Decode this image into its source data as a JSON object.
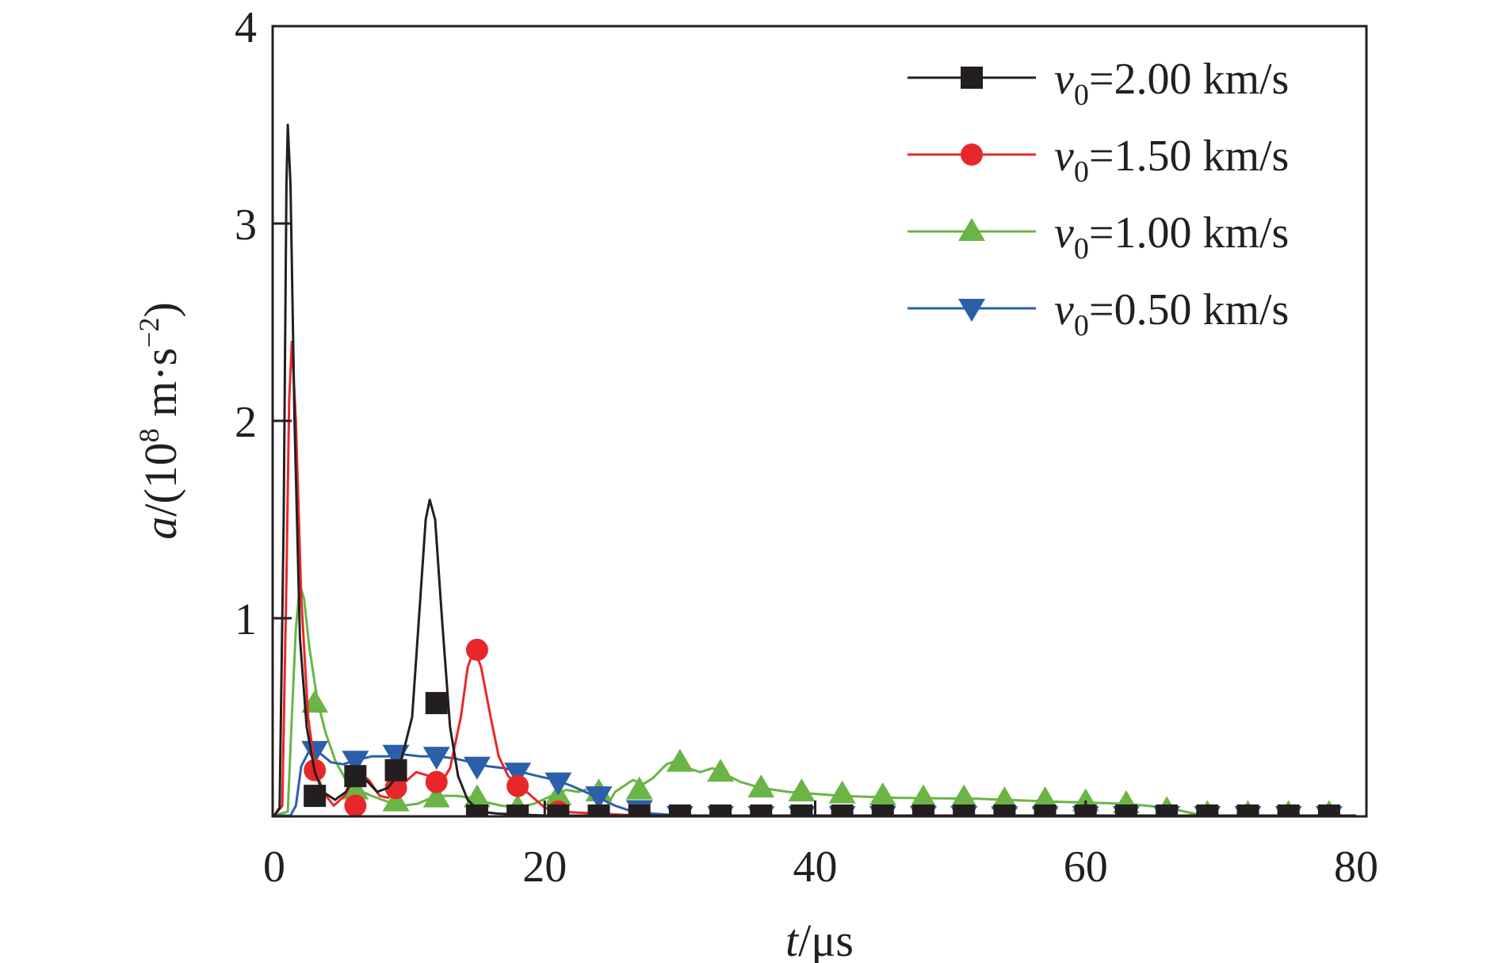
{
  "chart_data": {
    "type": "line",
    "xlabel": {
      "var": "t",
      "unit": "/μs"
    },
    "ylabel": {
      "var": "a",
      "unit": "/(10",
      "exp": "8",
      "unit2": " m·s",
      "exp2": "−2",
      "close": ")"
    },
    "xlim": [
      0,
      80
    ],
    "ylim": [
      0,
      4
    ],
    "x_ticks": [
      0,
      20,
      40,
      60,
      80
    ],
    "y_ticks": [
      1,
      2,
      3,
      4
    ],
    "x_tick_labels": [
      "0",
      "20",
      "40",
      "60",
      "80"
    ],
    "y_tick_labels": [
      "1",
      "2",
      "3",
      "4"
    ],
    "grid": false,
    "legend_position": "top-right",
    "series": [
      {
        "name": "v0=2.00 km/s",
        "legend": {
          "var": "v",
          "sub": "0",
          "text": "=2.00 km/s"
        },
        "color": "#231f20",
        "marker": "square",
        "line": [
          [
            0,
            0
          ],
          [
            0.4,
            0.04
          ],
          [
            0.7,
            1.5
          ],
          [
            0.9,
            3.2
          ],
          [
            1.0,
            3.5
          ],
          [
            1.2,
            3.2
          ],
          [
            1.5,
            2.0
          ],
          [
            1.9,
            0.9
          ],
          [
            2.4,
            0.45
          ],
          [
            3,
            0.22
          ],
          [
            3.6,
            0.12
          ],
          [
            4.5,
            0.08
          ],
          [
            5.3,
            0.12
          ],
          [
            6.1,
            0.22
          ],
          [
            6.8,
            0.18
          ],
          [
            7.6,
            0.12
          ],
          [
            8.4,
            0.14
          ],
          [
            9.1,
            0.2
          ],
          [
            10.2,
            0.5
          ],
          [
            10.8,
            1.1
          ],
          [
            11.2,
            1.5
          ],
          [
            11.5,
            1.6
          ],
          [
            11.9,
            1.5
          ],
          [
            12.4,
            1.0
          ],
          [
            13,
            0.45
          ],
          [
            13.6,
            0.2
          ],
          [
            14.3,
            0.08
          ],
          [
            15.2,
            0.02
          ],
          [
            16.5,
            0.01
          ],
          [
            20,
            0
          ],
          [
            80,
            0
          ]
        ],
        "markers": [
          [
            3,
            0.1
          ],
          [
            6,
            0.2
          ],
          [
            9,
            0.23
          ],
          [
            12,
            0.57
          ],
          [
            15,
            0
          ],
          [
            18,
            0
          ],
          [
            21,
            0
          ],
          [
            24,
            0
          ],
          [
            27,
            0
          ],
          [
            30,
            0
          ],
          [
            33,
            0
          ],
          [
            36,
            0
          ],
          [
            39,
            0
          ],
          [
            42,
            0
          ],
          [
            45,
            0
          ],
          [
            48,
            0
          ],
          [
            51,
            0
          ],
          [
            54,
            0
          ],
          [
            57,
            0
          ],
          [
            60,
            0
          ],
          [
            63,
            0
          ],
          [
            66,
            0
          ],
          [
            69,
            0
          ],
          [
            72,
            0
          ],
          [
            75,
            0
          ],
          [
            78,
            0
          ]
        ]
      },
      {
        "name": "v0=1.50 km/s",
        "legend": {
          "var": "v",
          "sub": "0",
          "text": "=1.50 km/s"
        },
        "color": "#e8272b",
        "marker": "circle",
        "line": [
          [
            0,
            0
          ],
          [
            0.6,
            0.05
          ],
          [
            0.9,
            1.2
          ],
          [
            1.1,
            2.1
          ],
          [
            1.3,
            2.4
          ],
          [
            1.6,
            2.0
          ],
          [
            2.0,
            1.1
          ],
          [
            2.5,
            0.5
          ],
          [
            3,
            0.25
          ],
          [
            3.6,
            0.12
          ],
          [
            4.4,
            0.05
          ],
          [
            5.2,
            0.1
          ],
          [
            6.2,
            0.22
          ],
          [
            7,
            0.18
          ],
          [
            7.8,
            0.1
          ],
          [
            8.4,
            0.09
          ],
          [
            9.5,
            0.16
          ],
          [
            10.5,
            0.22
          ],
          [
            11.5,
            0.2
          ],
          [
            12.3,
            0.16
          ],
          [
            13,
            0.24
          ],
          [
            13.8,
            0.5
          ],
          [
            14.3,
            0.75
          ],
          [
            14.8,
            0.85
          ],
          [
            15.3,
            0.75
          ],
          [
            16,
            0.5
          ],
          [
            16.6,
            0.3
          ],
          [
            17.3,
            0.2
          ],
          [
            18,
            0.16
          ],
          [
            19,
            0.1
          ],
          [
            20,
            0.04
          ],
          [
            21,
            0.02
          ],
          [
            24,
            0.01
          ],
          [
            27,
            0
          ],
          [
            80,
            0
          ]
        ],
        "markers": [
          [
            3,
            0.23
          ],
          [
            6,
            0.05
          ],
          [
            9,
            0.14
          ],
          [
            12,
            0.17
          ],
          [
            15,
            0.84
          ],
          [
            18,
            0.15
          ],
          [
            21,
            0.02
          ],
          [
            24,
            0
          ],
          [
            27,
            0
          ],
          [
            30,
            0
          ],
          [
            33,
            0
          ],
          [
            36,
            0
          ],
          [
            39,
            0
          ],
          [
            42,
            0
          ],
          [
            45,
            0
          ],
          [
            48,
            0
          ],
          [
            51,
            0
          ],
          [
            54,
            0
          ],
          [
            57,
            0
          ],
          [
            60,
            0
          ],
          [
            63,
            0
          ],
          [
            66,
            0
          ],
          [
            69,
            0
          ],
          [
            72,
            0
          ],
          [
            75,
            0
          ],
          [
            78,
            0
          ]
        ]
      },
      {
        "name": "v0=1.00 km/s",
        "legend": {
          "var": "v",
          "sub": "0",
          "text": "=1.00 km/s"
        },
        "color": "#6ab545",
        "marker": "triangle-up",
        "line": [
          [
            0,
            0
          ],
          [
            1.0,
            0.02
          ],
          [
            1.3,
            0.5
          ],
          [
            1.6,
            0.95
          ],
          [
            1.9,
            1.17
          ],
          [
            2.2,
            1.1
          ],
          [
            2.6,
            0.85
          ],
          [
            3.2,
            0.58
          ],
          [
            3.8,
            0.42
          ],
          [
            4.5,
            0.28
          ],
          [
            5.3,
            0.18
          ],
          [
            6.2,
            0.13
          ],
          [
            7.2,
            0.1
          ],
          [
            8.4,
            0.07
          ],
          [
            9.5,
            0.05
          ],
          [
            10.6,
            0.06
          ],
          [
            11.6,
            0.09
          ],
          [
            12.6,
            0.1
          ],
          [
            13.5,
            0.1
          ],
          [
            14.6,
            0.09
          ],
          [
            15.5,
            0.07
          ],
          [
            16.8,
            0.05
          ],
          [
            18,
            0.04
          ],
          [
            19.2,
            0.06
          ],
          [
            20.5,
            0.1
          ],
          [
            21.6,
            0.13
          ],
          [
            22.5,
            0.12
          ],
          [
            23.5,
            0.14
          ],
          [
            24.2,
            0.12
          ],
          [
            24.7,
            0.06
          ],
          [
            25.2,
            0.12
          ],
          [
            26.5,
            0.18
          ],
          [
            27.3,
            0.16
          ],
          [
            28,
            0.19
          ],
          [
            29,
            0.26
          ],
          [
            29.8,
            0.28
          ],
          [
            30.6,
            0.24
          ],
          [
            31.5,
            0.22
          ],
          [
            32.4,
            0.24
          ],
          [
            33.3,
            0.21
          ],
          [
            34.5,
            0.17
          ],
          [
            36,
            0.14
          ],
          [
            38,
            0.12
          ],
          [
            40,
            0.11
          ],
          [
            42,
            0.1
          ],
          [
            46,
            0.09
          ],
          [
            52,
            0.085
          ],
          [
            58,
            0.07
          ],
          [
            63,
            0.06
          ],
          [
            66,
            0.04
          ],
          [
            68,
            0.01
          ],
          [
            69,
            0
          ],
          [
            80,
            0
          ]
        ],
        "markers": [
          [
            3,
            0.57
          ],
          [
            6,
            0.13
          ],
          [
            9,
            0.07
          ],
          [
            12,
            0.09
          ],
          [
            15,
            0.09
          ],
          [
            18,
            0.04
          ],
          [
            21,
            0.1
          ],
          [
            24,
            0.12
          ],
          [
            27,
            0.13
          ],
          [
            30,
            0.27
          ],
          [
            33,
            0.22
          ],
          [
            36,
            0.14
          ],
          [
            39,
            0.12
          ],
          [
            42,
            0.11
          ],
          [
            45,
            0.1
          ],
          [
            48,
            0.09
          ],
          [
            51,
            0.09
          ],
          [
            54,
            0.08
          ],
          [
            57,
            0.08
          ],
          [
            60,
            0.07
          ],
          [
            63,
            0.06
          ],
          [
            66,
            0.03
          ],
          [
            69,
            0.01
          ],
          [
            72,
            0.01
          ],
          [
            75,
            0.01
          ],
          [
            78,
            0.01
          ]
        ]
      },
      {
        "name": "v0=0.50 km/s",
        "legend": {
          "var": "v",
          "sub": "0",
          "text": "=0.50 km/s"
        },
        "color": "#2b5faa",
        "marker": "triangle-down",
        "line": [
          [
            0,
            0
          ],
          [
            1.2,
            0
          ],
          [
            1.6,
            0.05
          ],
          [
            2.0,
            0.25
          ],
          [
            2.6,
            0.33
          ],
          [
            3.3,
            0.32
          ],
          [
            4.2,
            0.27
          ],
          [
            5.1,
            0.26
          ],
          [
            6,
            0.28
          ],
          [
            7.2,
            0.3
          ],
          [
            8.5,
            0.3
          ],
          [
            9.5,
            0.31
          ],
          [
            10.8,
            0.3
          ],
          [
            12,
            0.3
          ],
          [
            13.3,
            0.29
          ],
          [
            14.6,
            0.27
          ],
          [
            15.8,
            0.25
          ],
          [
            17,
            0.24
          ],
          [
            18.3,
            0.22
          ],
          [
            19.5,
            0.2
          ],
          [
            20.8,
            0.18
          ],
          [
            22,
            0.15
          ],
          [
            23,
            0.12
          ],
          [
            24,
            0.09
          ],
          [
            25.2,
            0.05
          ],
          [
            26.5,
            0.02
          ],
          [
            28,
            0.01
          ],
          [
            30,
            0
          ],
          [
            80,
            0
          ]
        ],
        "markers": [
          [
            3,
            0.33
          ],
          [
            6,
            0.28
          ],
          [
            9,
            0.31
          ],
          [
            12,
            0.3
          ],
          [
            15,
            0.25
          ],
          [
            18,
            0.22
          ],
          [
            21,
            0.17
          ],
          [
            24,
            0.1
          ],
          [
            27,
            0.03
          ],
          [
            30,
            0
          ],
          [
            33,
            0
          ],
          [
            36,
            0
          ],
          [
            39,
            0
          ],
          [
            42,
            0
          ],
          [
            45,
            0
          ],
          [
            48,
            0
          ],
          [
            51,
            0
          ],
          [
            54,
            0
          ],
          [
            57,
            0
          ],
          [
            60,
            0
          ],
          [
            63,
            0
          ],
          [
            66,
            0
          ],
          [
            69,
            0
          ],
          [
            72,
            0
          ],
          [
            75,
            0
          ],
          [
            78,
            0
          ]
        ]
      }
    ]
  }
}
